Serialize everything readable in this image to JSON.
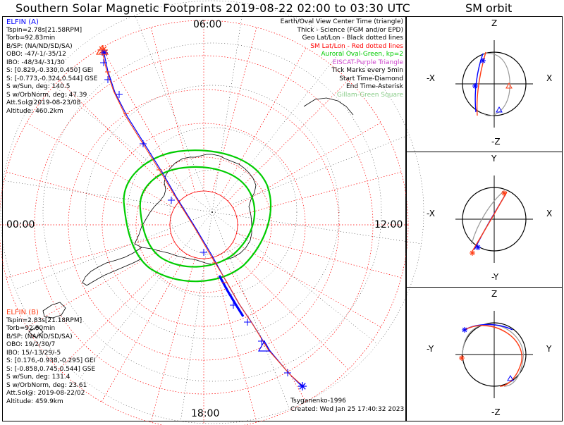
{
  "title": "Southern Solar Magnetic Footprints 2019-08-22 02:00 to 03:30 UTC",
  "orbit_title": "SM orbit",
  "colors": {
    "probe_a": "#0000ff",
    "probe_b": "#ff3c14",
    "oval": "#00cc00",
    "grid": "#ff0000",
    "map": "#000000",
    "eiscat": "#cc44cc",
    "gillam": "#88cc88"
  },
  "clock_labels": {
    "top": "06:00",
    "left": "00:00",
    "right": "12:00",
    "bottom": "18:00"
  },
  "legend": [
    {
      "text": "Earth/Oval View Center Time (triangle)",
      "color": "#000000"
    },
    {
      "text": "Thick - Science (FGM and/or EPD)",
      "color": "#000000"
    },
    {
      "text": "Geo Lat/Lon - Black dotted lines",
      "color": "#000000"
    },
    {
      "text": "SM Lat/Lon - Red dotted lines",
      "color": "#ff0000"
    },
    {
      "text": "Auroral Oval-Green, kp=2",
      "color": "#00cc00"
    },
    {
      "text": "EISCAT-Purple Triangle",
      "color": "#cc44cc"
    },
    {
      "text": "Tick Marks every 5min",
      "color": "#000000"
    },
    {
      "text": "Start Time-Diamond",
      "color": "#000000"
    },
    {
      "text": "End Time-Asterisk",
      "color": "#000000"
    },
    {
      "text": "Gillam-Green Square",
      "color": "#88cc88"
    }
  ],
  "probe_a": {
    "name": "ELFIN (A)",
    "lines": [
      "Tspin=2.78s[21.58RPM]",
      "Torb=92.83min",
      "B/SP: (NA/ND/SD/SA)",
      "OBO: -47/-1/-35/12",
      "IBO: -48/34/-31/30",
      "S: [0.829,-0.330,0.450] GEI",
      "S: [-0.773,-0.324,0.544] GSE",
      "S w/Sun, deg: 140.5",
      "S w/OrbNorm, deg: 47.39",
      "Att.Sol@2019-08-23/08",
      "Altitude: 460.2km"
    ]
  },
  "probe_b": {
    "name": "ELFIN (B)",
    "lines": [
      "Tspin=2.83s[21.18RPM]",
      "Torb=92.80min",
      "B/SP: (NA/ND/SD/SA)",
      "OBO: 19/2/30/7",
      "IBO: 15/-13/29/-5",
      "S: [0.176,-0.938,-0.295] GEI",
      "S: [-0.858,0.745,0.544] GSE",
      "S w/Sun, deg: 131.4",
      "S w/OrbNorm, deg: 23.61",
      "Att.Sol@: 2019-08-22/02",
      "Altitude: 459.9km"
    ]
  },
  "footer": {
    "model": "Tsyganenko-1996",
    "created": "Created: Wed Jan 25 17:40:32 2023"
  },
  "panels": [
    {
      "top": "Z",
      "bottom": "-Z",
      "left": "-X",
      "right": "X"
    },
    {
      "top": "Y",
      "bottom": "-Y",
      "left": "-X",
      "right": "X"
    },
    {
      "top": "Z",
      "bottom": "-Z",
      "left": "-Y",
      "right": "Y"
    }
  ],
  "chart_data": {
    "type": "scatter",
    "title": "Southern Solar Magnetic Footprints 2019-08-22 02:00 to 03:30 UTC",
    "projection": "polar, SM magnetic local time",
    "grid": true,
    "series": [
      {
        "name": "ELFIN (A)"
      },
      {
        "name": "ELFIN (B)"
      }
    ]
  }
}
